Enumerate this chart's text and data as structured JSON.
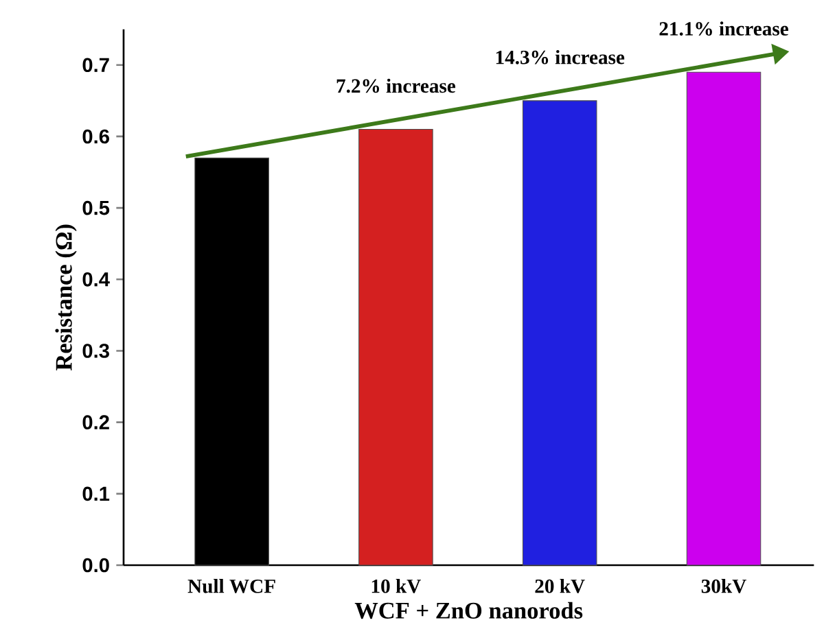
{
  "chart_data": {
    "type": "bar",
    "xlabel": "WCF + ZnO nanorods",
    "ylabel": "Resistance (Ω)",
    "categories": [
      "Null WCF",
      "10 kV",
      "20 kV",
      "30kV"
    ],
    "series": [
      {
        "colors": [
          "#000000",
          "#d42020",
          "#2020e0",
          "#cc00ee"
        ],
        "values": [
          0.57,
          0.61,
          0.65,
          0.69
        ]
      }
    ],
    "ylim": [
      0,
      0.75
    ],
    "yticks": [
      {
        "value": 0,
        "label": "0.0"
      },
      0.1,
      0.2,
      0.3,
      0.4,
      0.5,
      0.6,
      0.7
    ],
    "annotations": [
      "7.2% increase",
      "14.3% increase",
      "21.1% increase"
    ],
    "grid": false
  }
}
